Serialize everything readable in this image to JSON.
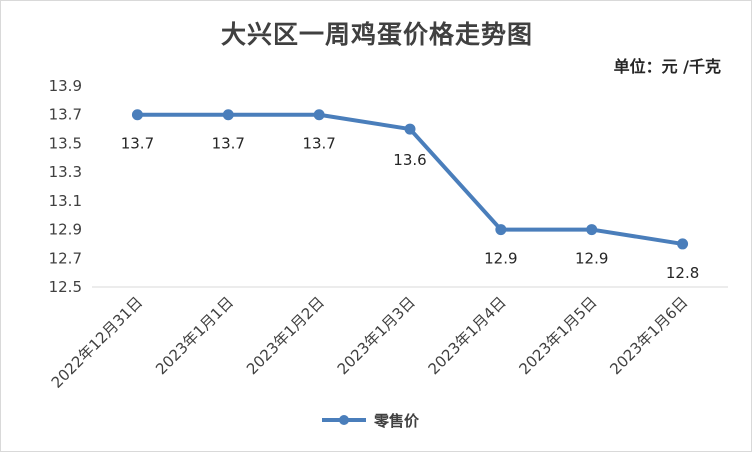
{
  "chart_data": {
    "type": "line",
    "title": "大兴区一周鸡蛋价格走势图",
    "unit_label": "单位：元 /千克",
    "categories": [
      "2022年12月31日",
      "2023年1月1日",
      "2023年1月2日",
      "2023年1月3日",
      "2023年1月4日",
      "2023年1月5日",
      "2023年1月6日"
    ],
    "series": [
      {
        "name": "零售价",
        "values": [
          13.7,
          13.7,
          13.7,
          13.6,
          12.9,
          12.9,
          12.8
        ],
        "color": "#4a7ebb"
      }
    ],
    "data_labels": [
      "13.7",
      "13.7",
      "13.7",
      "13.6",
      "12.9",
      "12.9",
      "12.8"
    ],
    "ylim": [
      12.5,
      13.9
    ],
    "yticks": [
      "12.5",
      "12.7",
      "12.9",
      "13.1",
      "13.3",
      "13.5",
      "13.7",
      "13.9"
    ],
    "grid": false,
    "legend_position": "bottom"
  }
}
